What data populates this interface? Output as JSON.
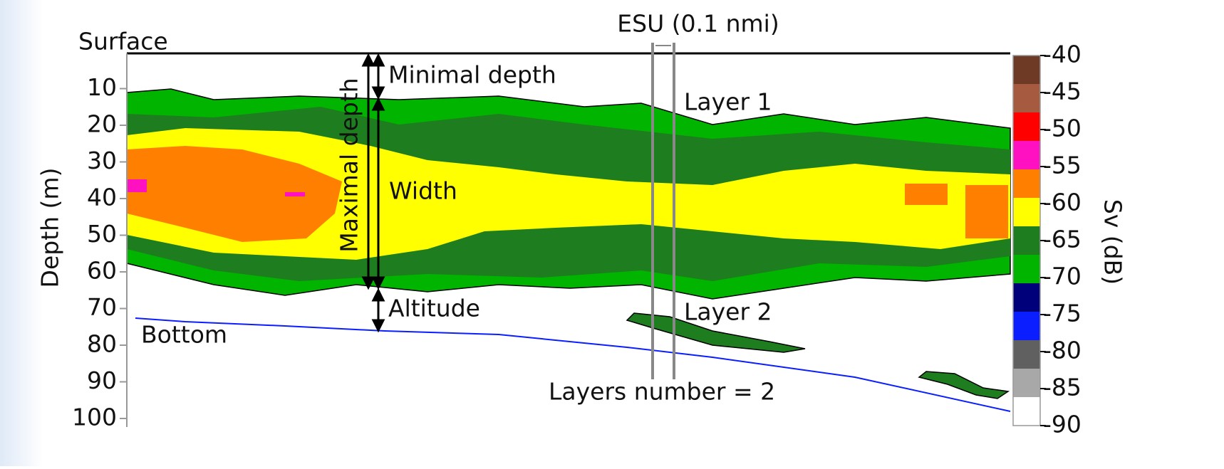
{
  "surface_label": "Surface",
  "esu_label": "ESU (0.1 nmi)",
  "y_axis": {
    "label": "Depth (m)",
    "ticks": [
      10,
      20,
      30,
      40,
      50,
      60,
      70,
      80,
      90,
      100
    ]
  },
  "colorbar": {
    "label": "Sv (dB)",
    "ticks": [
      -40,
      -45,
      -50,
      -55,
      -60,
      -65,
      -70,
      -75,
      -80,
      -85,
      -90
    ],
    "colors": [
      "#6e3a26",
      "#a65a3f",
      "#ff0000",
      "#ff10c0",
      "#ff8000",
      "#ffff00",
      "#1e7d1e",
      "#00b400",
      "#00007a",
      "#0a1eff",
      "#606060",
      "#a8a8a8",
      "#ffffff"
    ]
  },
  "annotations": {
    "minimal_depth": "Minimal depth",
    "maximal_depth": "Maximal depth",
    "width": "Width",
    "altitude": "Altitude",
    "layer_1": "Layer 1",
    "layer_2": "Layer 2",
    "bottom": "Bottom",
    "layers_number": "Layers number = 2"
  }
}
